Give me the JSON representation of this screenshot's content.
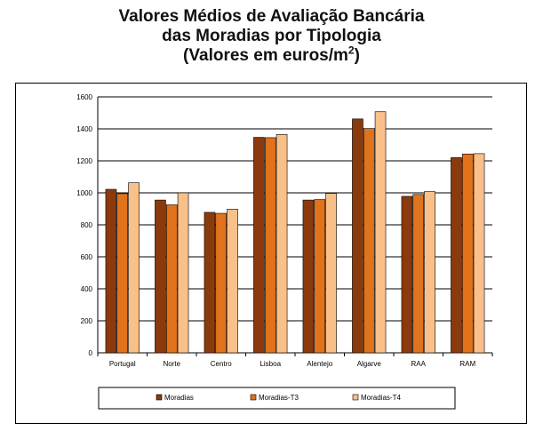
{
  "title": {
    "line1": "Valores Médios de Avaliação Bancária",
    "line2": "das Moradias por Tipologia",
    "line3_prefix": "(Valores em euros/m",
    "line3_sup": "2",
    "line3_suffix": ")"
  },
  "colors": {
    "moradias": "#8B3A0E",
    "moradias_t3": "#E0731C",
    "moradias_t4": "#F9C08A",
    "grid": "#000000"
  },
  "chart_data": {
    "type": "bar",
    "title": "Valores Médios de Avaliação Bancária das Moradias por Tipologia (Valores em euros/m2)",
    "categories": [
      "Portugal",
      "Norte",
      "Centro",
      "Lisboa",
      "Alentejo",
      "Algarve",
      "RAA",
      "RAM"
    ],
    "series": [
      {
        "name": "Moradias",
        "values": [
          1022,
          955,
          878,
          1347,
          955,
          1462,
          978,
          1220
        ]
      },
      {
        "name": "Moradias-T3",
        "values": [
          995,
          925,
          872,
          1345,
          958,
          1402,
          990,
          1243
        ]
      },
      {
        "name": "Moradias-T4",
        "values": [
          1063,
          1000,
          898,
          1365,
          997,
          1507,
          1008,
          1245
        ]
      }
    ],
    "ylim": [
      0,
      1600
    ],
    "yticks": [
      0,
      200,
      400,
      600,
      800,
      1000,
      1200,
      1400,
      1600
    ],
    "grid": true,
    "legend": "bottom"
  }
}
